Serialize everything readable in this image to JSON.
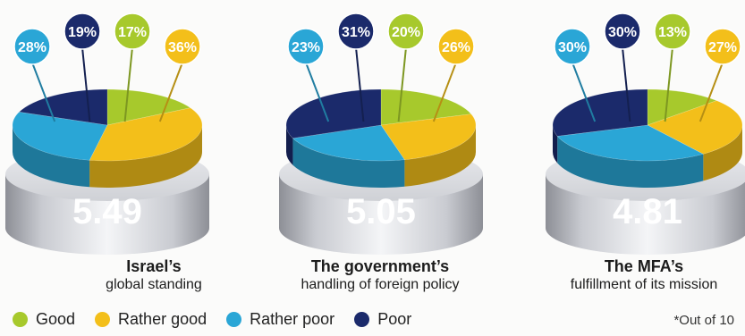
{
  "legend": [
    {
      "label": "Good",
      "color": "#a7c92c"
    },
    {
      "label": "Rather good",
      "color": "#f3bf1a"
    },
    {
      "label": "Rather poor",
      "color": "#2aa6d6"
    },
    {
      "label": "Poor",
      "color": "#1b2a6b"
    }
  ],
  "footnote": "*Out of 10",
  "chart_data": [
    {
      "type": "pie",
      "title_line1": "Israel’s",
      "title_line2": "global standing",
      "score": "5.49",
      "categories": [
        "Good",
        "Rather good",
        "Rather poor",
        "Poor"
      ],
      "values": [
        17,
        36,
        28,
        19
      ],
      "value_labels": [
        "17%",
        "36%",
        "28%",
        "19%"
      ]
    },
    {
      "type": "pie",
      "title_line1": "The government’s",
      "title_line2": "handling of foreign policy",
      "score": "5.05",
      "categories": [
        "Good",
        "Rather good",
        "Rather poor",
        "Poor"
      ],
      "values": [
        20,
        26,
        23,
        31
      ],
      "value_labels": [
        "20%",
        "26%",
        "23%",
        "31%"
      ]
    },
    {
      "type": "pie",
      "title_line1": "The MFA’s",
      "title_line2": "fulfillment of its mission",
      "score": "4.81",
      "categories": [
        "Good",
        "Rather good",
        "Rather poor",
        "Poor"
      ],
      "values": [
        13,
        27,
        30,
        30
      ],
      "value_labels": [
        "13%",
        "27%",
        "30%",
        "30%"
      ]
    }
  ]
}
